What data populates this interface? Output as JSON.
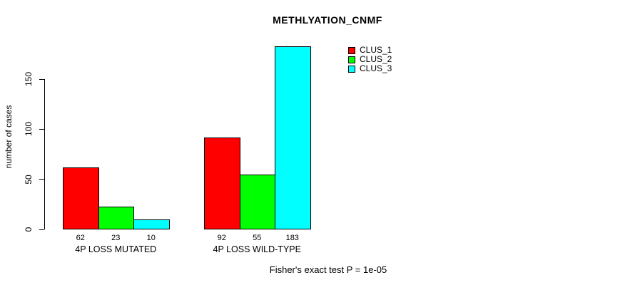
{
  "title": "METHLYATION_CNMF",
  "chart_data": {
    "type": "bar",
    "title": "METHLYATION_CNMF",
    "xlabel": "",
    "ylabel": "number of cases",
    "categories": [
      "4P LOSS MUTATED",
      "4P LOSS WILD-TYPE"
    ],
    "series": [
      {
        "name": "CLUS_1",
        "color": "#ff0000",
        "values": [
          62,
          92
        ]
      },
      {
        "name": "CLUS_2",
        "color": "#00ff00",
        "values": [
          23,
          55
        ]
      },
      {
        "name": "CLUS_3",
        "color": "#00ffff",
        "values": [
          10,
          183
        ]
      }
    ],
    "bar_value_labels": [
      [
        "62",
        "23",
        "10"
      ],
      [
        "92",
        "55",
        "183"
      ]
    ],
    "yticks": [
      0,
      50,
      100,
      150
    ],
    "ylim": [
      0,
      150
    ],
    "grid": false,
    "legend_position": "top-right",
    "legend_entries": [
      "CLUS_1",
      "CLUS_2",
      "CLUS_3"
    ],
    "annotation": "Fisher's exact test P = 1e-05"
  },
  "colors": {
    "clus_1": "#ff0000",
    "clus_2": "#00ff00",
    "clus_3": "#00ffff",
    "axis": "#000000",
    "background": "#ffffff"
  }
}
